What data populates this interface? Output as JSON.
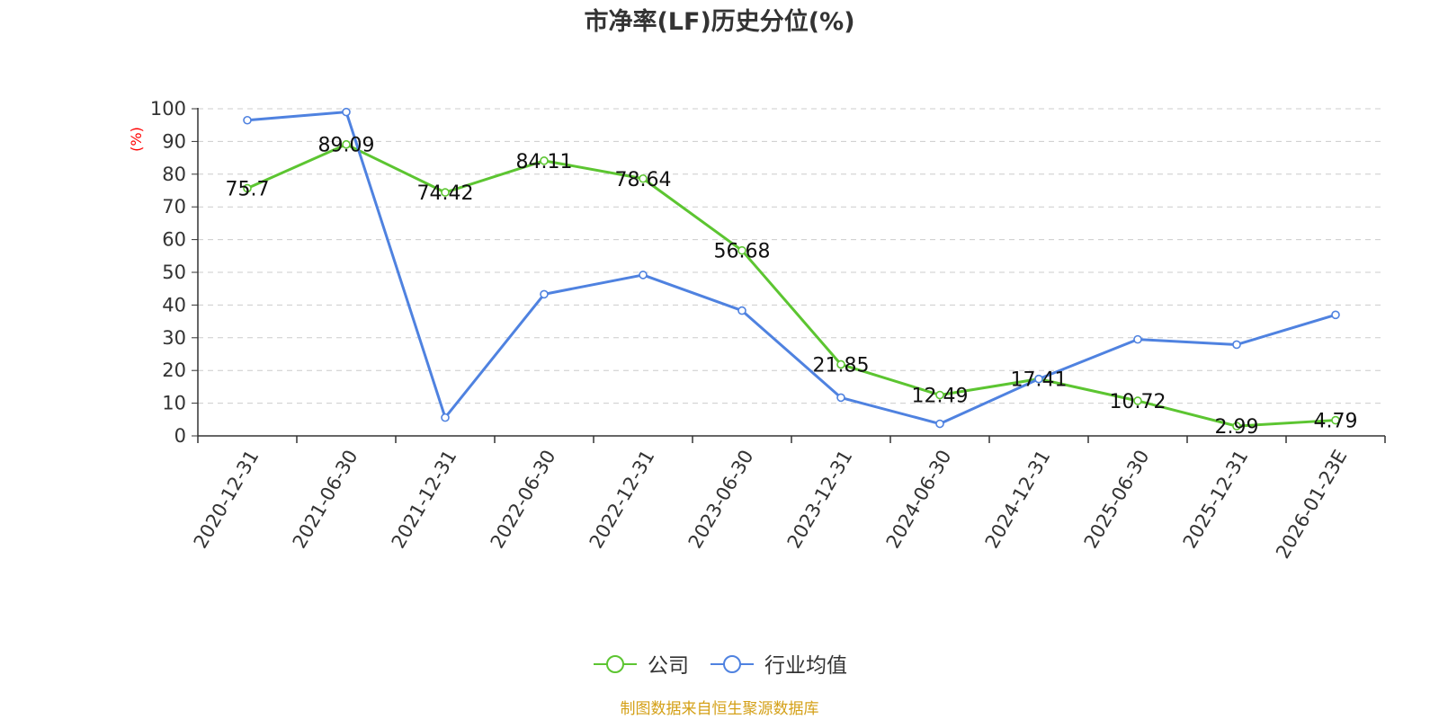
{
  "chart_data": {
    "type": "line",
    "title": "市净率(LF)历史分位(%)",
    "ylabel": "(%)",
    "xlabel": "",
    "ylim": [
      0,
      100
    ],
    "yticks": [
      0,
      10,
      20,
      30,
      40,
      50,
      60,
      70,
      80,
      90,
      100
    ],
    "categories": [
      "2020-12-31",
      "2021-06-30",
      "2021-12-31",
      "2022-06-30",
      "2022-12-31",
      "2023-06-30",
      "2023-12-31",
      "2024-06-30",
      "2024-12-31",
      "2025-06-30",
      "2025-12-31",
      "2026-01-23E"
    ],
    "grid": true,
    "legend_position": "bottom-center",
    "series": [
      {
        "name": "公司",
        "color": "#5cc531",
        "values": [
          75.7,
          89.09,
          74.42,
          84.11,
          78.64,
          56.68,
          21.85,
          12.49,
          17.41,
          10.72,
          2.99,
          4.79
        ],
        "labels": [
          "75.7",
          "89.09",
          "74.42",
          "84.11",
          "78.64",
          "56.68",
          "21.85",
          "12.49",
          "17.41",
          "10.72",
          "2.99",
          "4.79"
        ]
      },
      {
        "name": "行业均值",
        "color": "#4f82e0",
        "values": [
          96.5,
          99,
          5.6,
          43.3,
          49.2,
          38.3,
          11.7,
          3.7,
          17.4,
          29.5,
          27.9,
          37
        ]
      }
    ]
  },
  "source_text": "制图数据来自恒生聚源数据库",
  "colors": {
    "axis": "#333333",
    "grid": "#cccccc",
    "ylabel": "#ff0000",
    "source": "#d4a017",
    "title": "#333333"
  }
}
